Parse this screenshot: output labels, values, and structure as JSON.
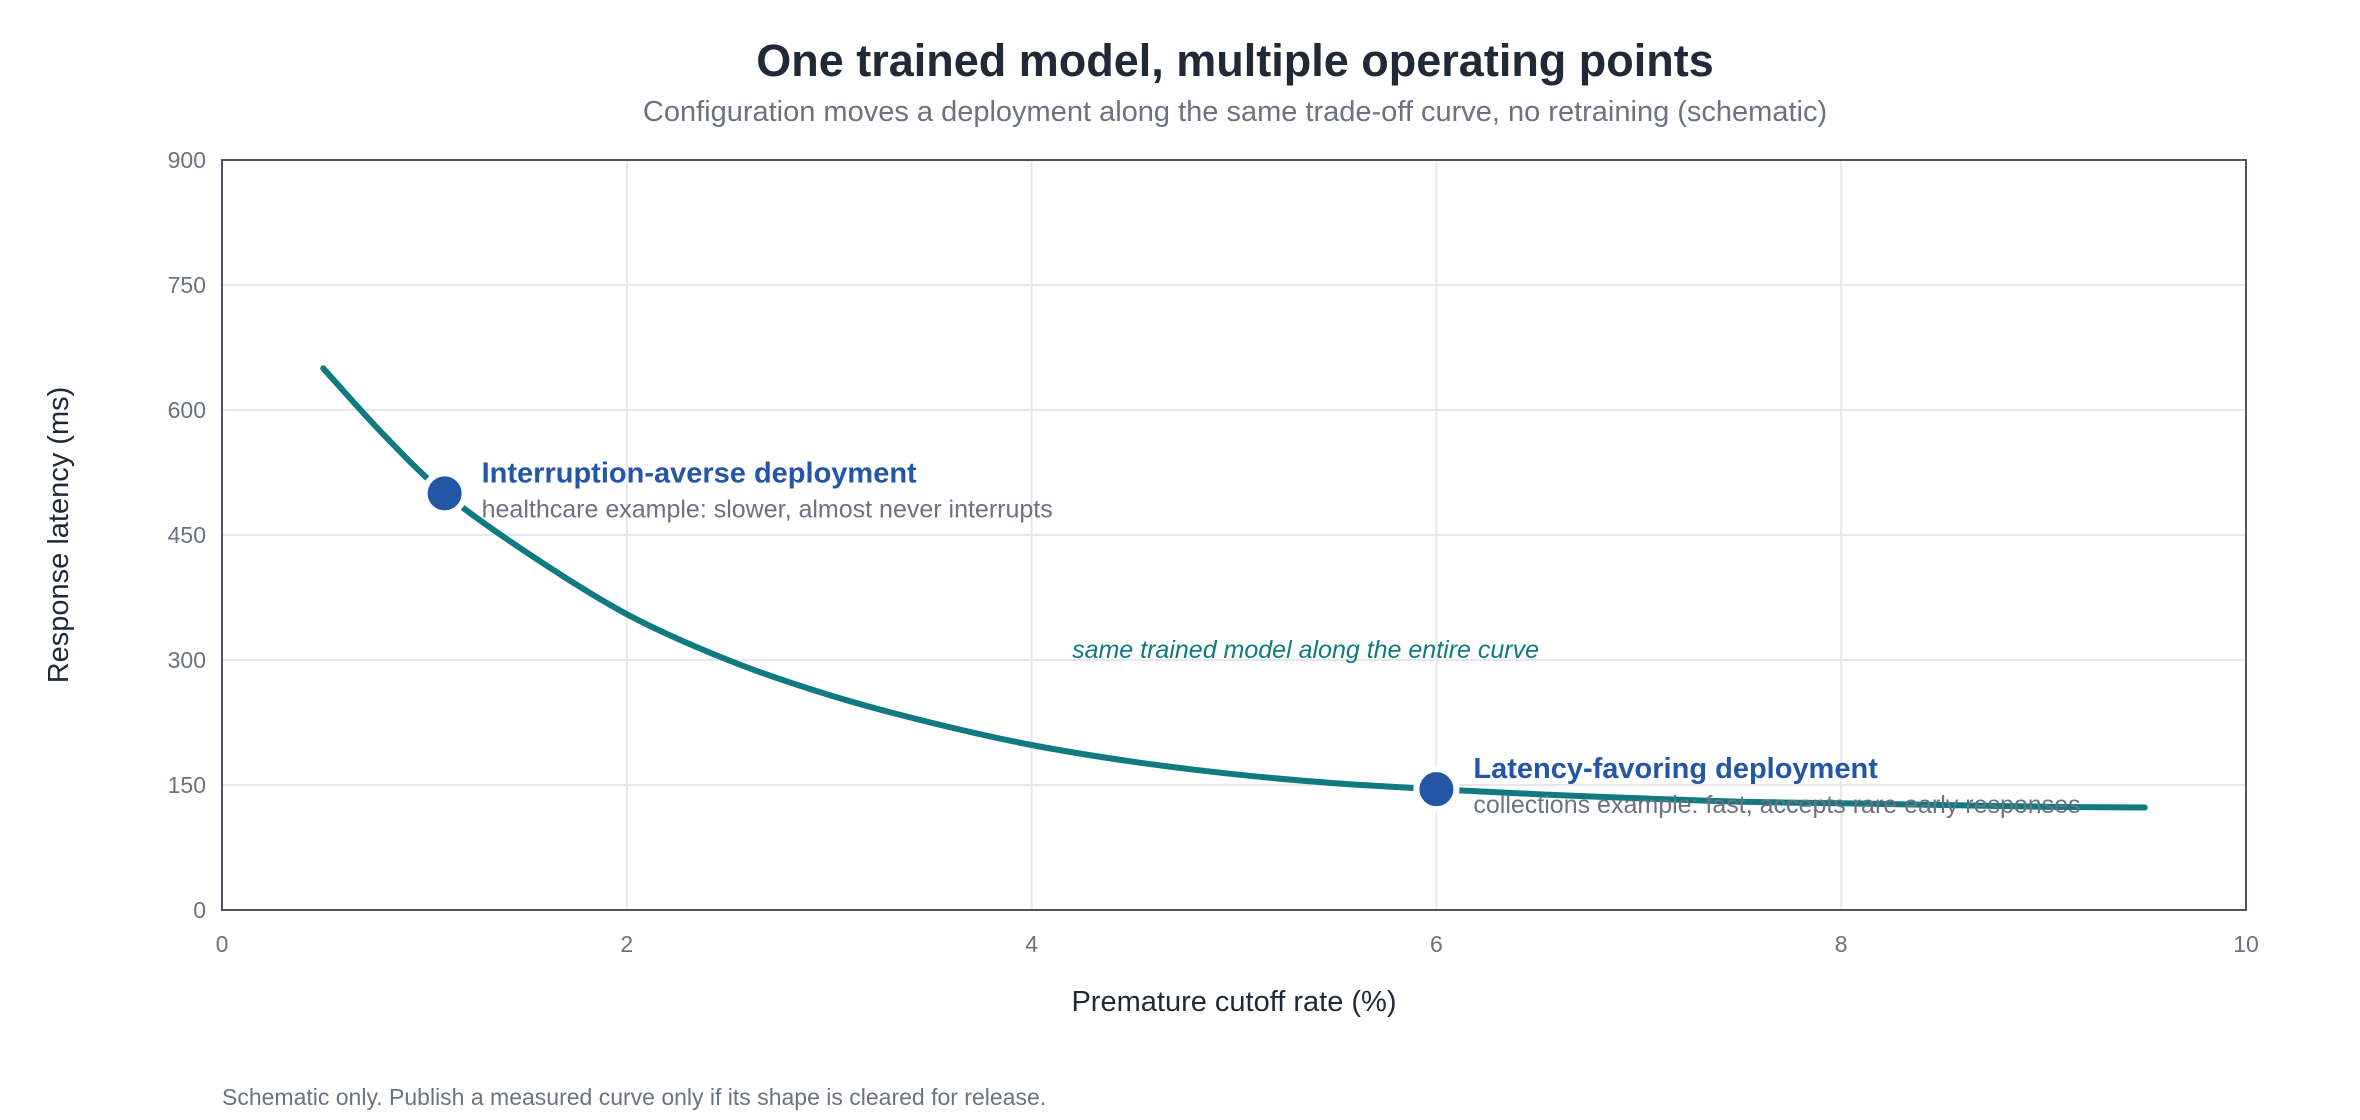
{
  "chart_data": {
    "type": "line",
    "title": "One trained model, multiple operating points",
    "subtitle": "Configuration moves a deployment along the same trade-off curve, no retraining (schematic)",
    "xlabel": "Premature cutoff rate (%)",
    "ylabel": "Response latency (ms)",
    "xlim": [
      0,
      10
    ],
    "ylim": [
      0,
      900
    ],
    "x_ticks": [
      0,
      2,
      4,
      6,
      8,
      10
    ],
    "y_ticks": [
      0,
      150,
      300,
      450,
      600,
      750,
      900
    ],
    "grid": true,
    "series": [
      {
        "color": "#0f7b80",
        "x": [
          0.5,
          0.8,
          1.1,
          1.5,
          2.0,
          2.5,
          3.0,
          3.5,
          4.0,
          4.5,
          5.0,
          5.5,
          6.0,
          6.5,
          7.0,
          7.5,
          8.0,
          8.5,
          9.0,
          9.5
        ],
        "y": [
          650,
          570,
          500,
          430,
          355,
          300,
          258,
          225,
          198,
          178,
          163,
          152,
          145,
          139,
          134,
          130,
          128,
          126,
          124,
          123
        ]
      }
    ],
    "points": [
      {
        "x": 1.1,
        "y": 500,
        "label": "Interruption-averse deployment",
        "description": "healthcare example: slower, almost never interrupts",
        "color": "#2456a6"
      },
      {
        "x": 6.0,
        "y": 145,
        "label": "Latency-favoring deployment",
        "description": "collections example: fast, accepts rare early responses",
        "color": "#2456a6"
      }
    ],
    "annotations": [
      {
        "text": "same trained model along the entire curve",
        "x": 4.2,
        "y": 300
      }
    ],
    "footnote": "Schematic only. Publish a measured curve only if its shape is cleared for release."
  }
}
